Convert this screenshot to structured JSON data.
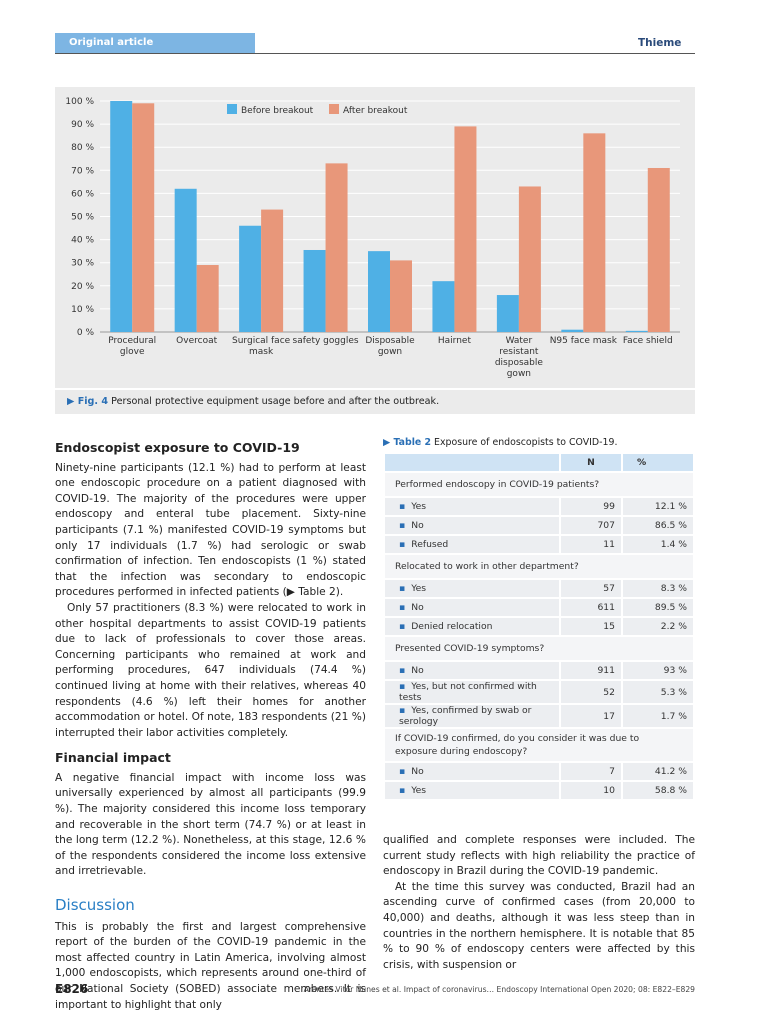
{
  "header": {
    "section": "Original article",
    "publisher": "Thieme"
  },
  "chart_data": {
    "type": "bar",
    "categories": [
      "Procedural glove",
      "Overcoat",
      "Surgical face mask",
      "safety goggles",
      "Disposable gown",
      "Hairnet",
      "Water resistant disposable gown",
      "N95 face mask",
      "Face shield"
    ],
    "series": [
      {
        "name": "Before breakout",
        "color": "#4fb0e5",
        "values": [
          100,
          62,
          46,
          35.5,
          35,
          22,
          16,
          1,
          0.5
        ]
      },
      {
        "name": "After breakout",
        "color": "#e8977a",
        "values": [
          99,
          29,
          53,
          73,
          31,
          89,
          63,
          86,
          71
        ]
      }
    ],
    "ylim": [
      0,
      100
    ],
    "yticks": [
      {
        "value": 0,
        "label": "0 %"
      },
      {
        "value": 10,
        "label": "10 %"
      },
      {
        "value": 20,
        "label": "20 %"
      },
      {
        "value": 30,
        "label": "30 %"
      },
      {
        "value": 40,
        "label": "40 %"
      },
      {
        "value": 50,
        "label": "50 %"
      },
      {
        "value": 60,
        "label": "60 %"
      },
      {
        "value": 70,
        "label": "70 %"
      },
      {
        "value": 80,
        "label": "80 %"
      },
      {
        "value": 90,
        "label": "90 %"
      },
      {
        "value": 100,
        "label": "100 %"
      }
    ],
    "grid": true
  },
  "figure": {
    "label": "▶ Fig. 4",
    "caption": "Personal protective equipment usage before and after the outbreak."
  },
  "left": {
    "heading1": "Endoscopist exposure to COVID-19",
    "p1": "Ninety-nine participants (12.1 %) had to perform at least one endoscopic procedure on a patient diagnosed with COVID-19. The majority of the procedures were upper endoscopy and enteral tube placement. Sixty-nine participants (7.1 %) manifested COVID-19 symptoms but only 17 individuals (1.7 %) had serologic or swab confirmation of infection. Ten endoscopists (1 %) stated that the infection was secondary to endoscopic procedures performed in infected patients (▶ Table 2).",
    "p2": "Only 57 practitioners (8.3 %) were relocated to work in other hospital departments to assist COVID-19 patients due to lack of professionals to cover those areas. Concerning participants who remained at work and performing procedures, 647 individuals (74.4 %) continued living at home with their relatives, whereas 40 respondents (4.6 %) left their homes for another accommodation or hotel. Of note, 183 respondents (21 %) interrupted their labor activities completely.",
    "heading2": "Financial impact",
    "p3": "A negative financial impact with income loss was universally experienced by almost all participants (99.9 %). The majority considered this income loss temporary and recoverable in the short term (74.7 %) or at least in the long term (12.2 %). Nonetheless, at this stage, 12.6 % of the respondents considered the income loss extensive and irretrievable.",
    "heading3": "Discussion",
    "p4": "This is probably the first and largest comprehensive report of the burden of the COVID-19 pandemic in the most affected country in Latin America, involving almost 1,000 endoscopists, which represents around one-third of our National Society (SOBED) associate members. It is important to highlight that only"
  },
  "table": {
    "label": "▶ Table 2",
    "caption": "Exposure of endoscopists to COVID-19.",
    "header": [
      "N",
      "%"
    ],
    "groups": [
      {
        "title": "Performed endoscopy in COVID-19 patients?",
        "rows": [
          [
            "Yes",
            "99",
            "12.1 %"
          ],
          [
            "No",
            "707",
            "86.5 %"
          ],
          [
            "Refused",
            "11",
            "1.4 %"
          ]
        ]
      },
      {
        "title": "Relocated to work in other department?",
        "rows": [
          [
            "Yes",
            "57",
            "8.3 %"
          ],
          [
            "No",
            "611",
            "89.5 %"
          ],
          [
            "Denied relocation",
            "15",
            "2.2 %"
          ]
        ]
      },
      {
        "title": "Presented COVID-19 symptoms?",
        "rows": [
          [
            "No",
            "911",
            "93 %"
          ],
          [
            "Yes, but not confirmed with tests",
            "52",
            "5.3 %"
          ],
          [
            "Yes, confirmed by swab or serology",
            "17",
            "1.7 %"
          ]
        ]
      },
      {
        "title": "If COVID-19 confirmed, do you consider it was due to exposure during endoscopy?",
        "rows": [
          [
            "No",
            "7",
            "41.2 %"
          ],
          [
            "Yes",
            "10",
            "58.8 %"
          ]
        ]
      }
    ]
  },
  "right": {
    "p1": "qualified and complete responses were included. The current study reflects with high reliability the practice of endoscopy in Brazil during the COVID-19 pandemic.",
    "p2": "At the time this survey was conducted, Brazil had an ascending curve of confirmed cases (from 20,000 to 40,000) and deaths, although it was less steep than in countries in the northern hemisphere. It is notable that 85 % to 90 % of endoscopy centers were affected by this crisis, with suspension or"
  },
  "footer": {
    "page": "E826",
    "citation": "Arantes Vitor Nunes et al. Impact of coronavirus… Endoscopy International Open 2020; 08: E822–E829"
  }
}
